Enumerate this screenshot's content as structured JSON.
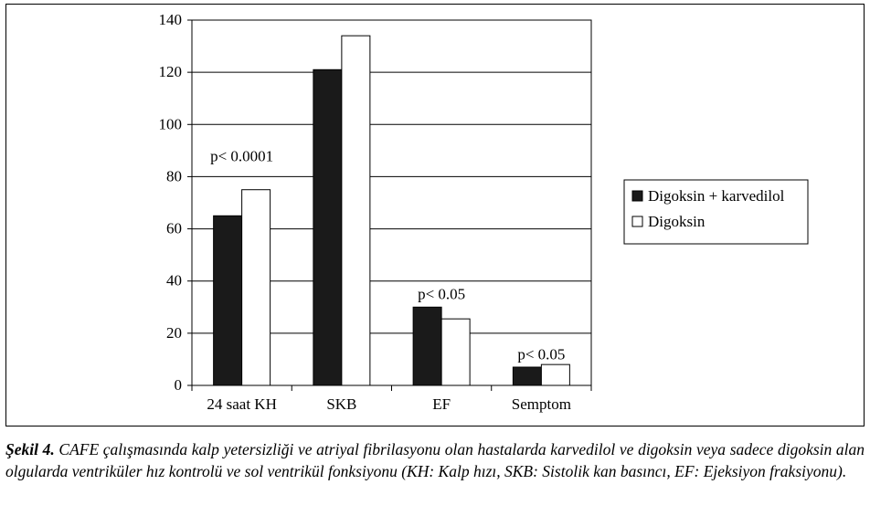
{
  "chart_data": {
    "type": "bar",
    "categories": [
      "24 saat KH",
      "SKB",
      "EF",
      "Semptom"
    ],
    "series": [
      {
        "name": "Digoksin + karvedilol",
        "values": [
          65,
          121,
          30,
          7
        ],
        "color": "#1a1a1a"
      },
      {
        "name": "Digoksin",
        "values": [
          75,
          134,
          25.5,
          8
        ],
        "color": "#ffffff"
      }
    ],
    "yticks": [
      0,
      20,
      40,
      60,
      80,
      100,
      120,
      140
    ],
    "ylim": [
      0,
      140
    ],
    "annotations": [
      {
        "category": "24 saat KH",
        "text": "p< 0.0001",
        "y": 86
      },
      {
        "category": "EF",
        "text": "p< 0.05",
        "y": 33
      },
      {
        "category": "Semptom",
        "text": "p< 0.05",
        "y": 10
      }
    ],
    "title": "",
    "xlabel": "",
    "ylabel": "",
    "grid": "horizontal",
    "legend_position": "right"
  },
  "caption": {
    "label": "Şekil 4.",
    "text": "CAFE çalışmasında kalp yetersizliği ve atriyal fibrilasyonu olan hastalarda karvedilol ve digoksin veya sadece digoksin alan olgularda ventriküler hız kontrolü ve sol ventrikül fonksiyonu (KH: Kalp hızı, SKB: Sistolik kan basıncı, EF: Ejeksiyon fraksiyonu)."
  }
}
